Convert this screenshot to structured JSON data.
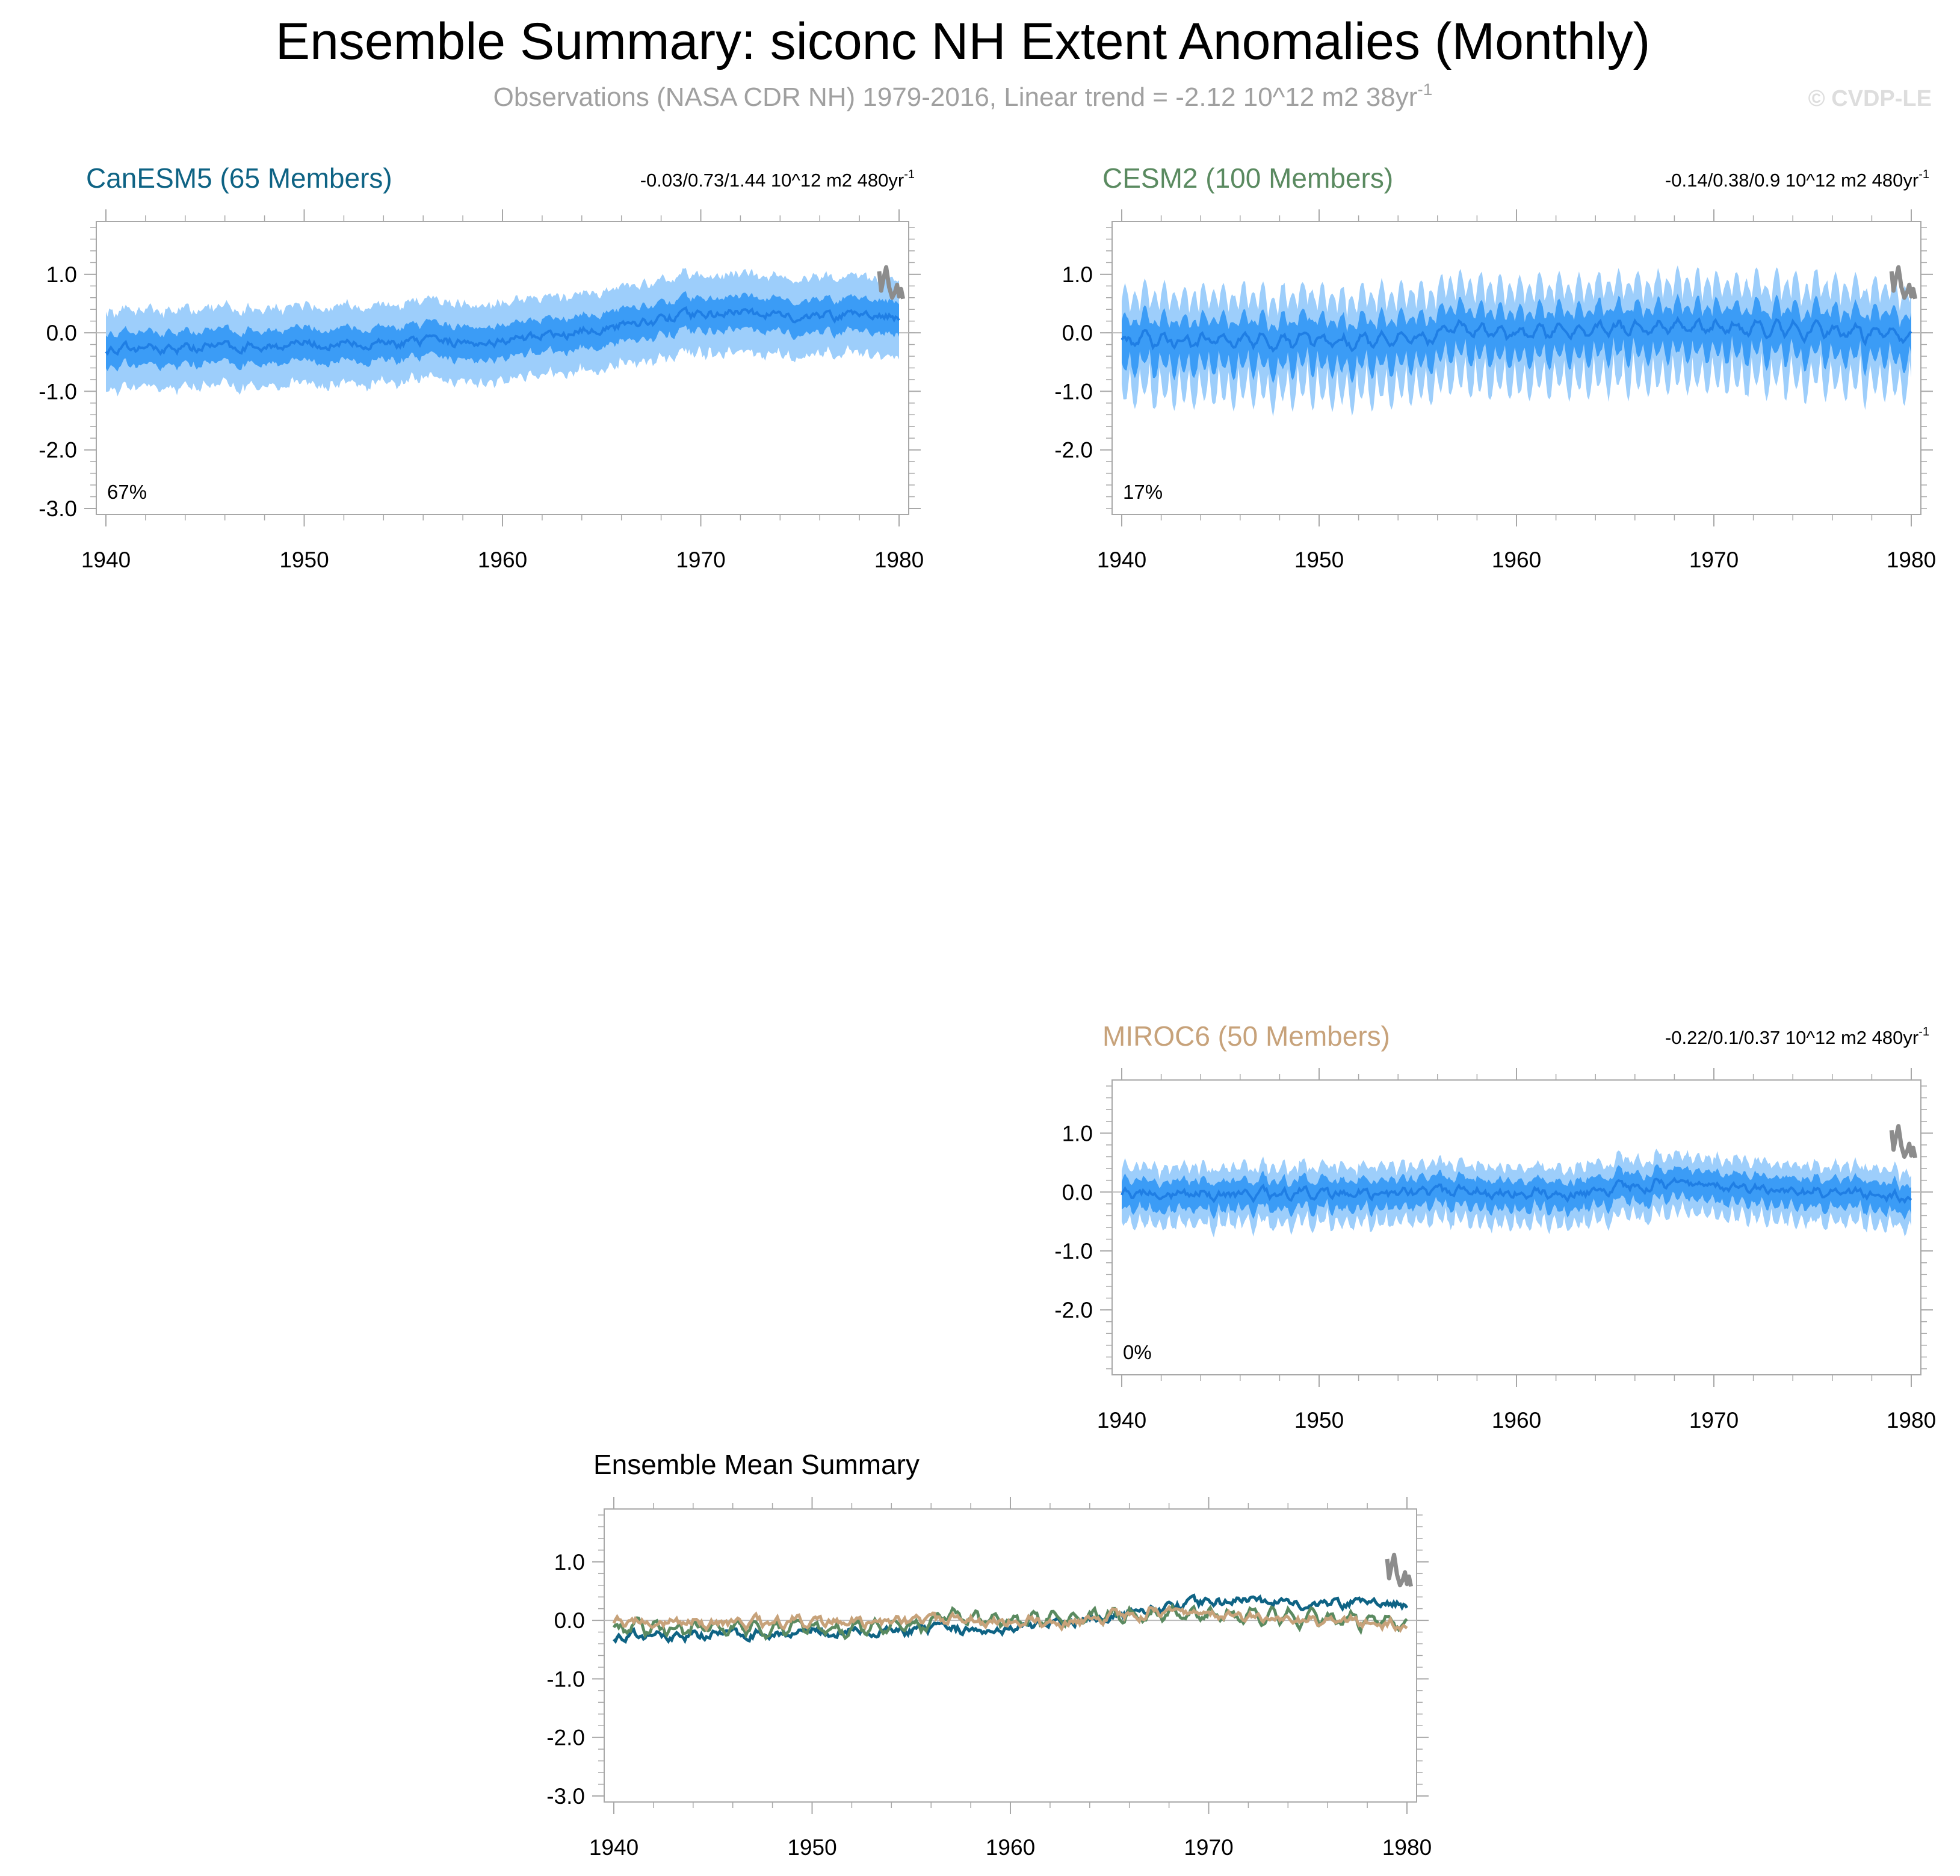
{
  "figure": {
    "title": "Ensemble Summary: siconc NH Extent Anomalies (Monthly)",
    "subtitle": "Observations (NASA CDR NH) 1979-2016, Linear trend = -2.12 10^12 m2 38yr",
    "subtitle_exponent": "-1",
    "copyright": "© CVDP-LE",
    "colors": {
      "title": "#000000",
      "subtitle": "#a0a0a0",
      "copyright": "#dddddd",
      "outer_spread": "#9dcefb",
      "inner_spread": "#3b9cf6",
      "ensemble_mean": "#1f7ee4",
      "observations": "#8c8c8c",
      "axis": "#a8a8a8"
    }
  },
  "chart_data": [
    {
      "id": "canesm5",
      "type": "area",
      "title": "CanESM5 (65 Members)",
      "title_color": "#0e6384",
      "stats": "-0.03/0.73/1.44 10^12 m2 480yr",
      "stats_exponent": "-1",
      "percent_label": "67%",
      "xlim": [
        1940,
        1980
      ],
      "ylim": [
        -3.0,
        1.8
      ],
      "xticks": [
        "1940",
        "1950",
        "1960",
        "1970",
        "1980"
      ],
      "yticks": [
        "1.0",
        "0.0",
        "-1.0",
        "-2.0",
        "-3.0"
      ],
      "ytick_values": [
        1.0,
        0.0,
        -1.0,
        -2.0,
        -3.0
      ],
      "mean_anchors": [
        [
          1940,
          -0.28
        ],
        [
          1945,
          -0.25
        ],
        [
          1950,
          -0.2
        ],
        [
          1955,
          -0.18
        ],
        [
          1960,
          -0.12
        ],
        [
          1963,
          -0.05
        ],
        [
          1965,
          0.08
        ],
        [
          1967,
          0.2
        ],
        [
          1970,
          0.32
        ],
        [
          1972,
          0.35
        ],
        [
          1975,
          0.28
        ],
        [
          1978,
          0.3
        ],
        [
          1980,
          0.28
        ]
      ],
      "inner_halfwidth": 0.26,
      "outer_halfwidth": 0.58,
      "seasonal_amplitude": 0.05
    },
    {
      "id": "cesm2",
      "type": "area",
      "title": "CESM2 (100 Members)",
      "title_color": "#5a8a60",
      "stats": "-0.14/0.38/0.9 10^12 m2 480yr",
      "stats_exponent": "-1",
      "percent_label": "17%",
      "xlim": [
        1940,
        1980
      ],
      "ylim": [
        -3.0,
        1.8
      ],
      "xticks": [
        "1940",
        "1950",
        "1960",
        "1970",
        "1980"
      ],
      "yticks": [
        "1.0",
        "0.0",
        "-1.0",
        "-2.0"
      ],
      "ytick_values": [
        1.0,
        0.0,
        -1.0,
        -2.0
      ],
      "mean_anchors": [
        [
          1940,
          -0.12
        ],
        [
          1945,
          -0.15
        ],
        [
          1950,
          -0.12
        ],
        [
          1955,
          -0.08
        ],
        [
          1957,
          0.05
        ],
        [
          1960,
          -0.02
        ],
        [
          1963,
          0.02
        ],
        [
          1966,
          0.08
        ],
        [
          1970,
          0.1
        ],
        [
          1975,
          0.05
        ],
        [
          1978,
          0.0
        ],
        [
          1980,
          -0.08
        ]
      ],
      "inner_halfwidth": 0.22,
      "outer_halfwidth": 0.45,
      "seasonal_amplitude": 0.38
    },
    {
      "id": "miroc6",
      "type": "area",
      "title": "MIROC6 (50 Members)",
      "title_color": "#c7a27a",
      "stats": "-0.22/0.1/0.37 10^12 m2 480yr",
      "stats_exponent": "-1",
      "percent_label": "0%",
      "xlim": [
        1940,
        1980
      ],
      "ylim": [
        -3.0,
        1.8
      ],
      "xticks": [
        "1940",
        "1950",
        "1960",
        "1970",
        "1980"
      ],
      "yticks": [
        "1.0",
        "0.0",
        "-1.0",
        "-2.0"
      ],
      "ytick_values": [
        1.0,
        0.0,
        -1.0,
        -2.0
      ],
      "mean_anchors": [
        [
          1940,
          -0.02
        ],
        [
          1945,
          -0.05
        ],
        [
          1950,
          -0.02
        ],
        [
          1955,
          0.0
        ],
        [
          1960,
          -0.02
        ],
        [
          1963,
          0.0
        ],
        [
          1967,
          0.15
        ],
        [
          1970,
          0.1
        ],
        [
          1975,
          0.02
        ],
        [
          1980,
          -0.08
        ]
      ],
      "inner_halfwidth": 0.18,
      "outer_halfwidth": 0.32,
      "seasonal_amplitude": 0.14
    },
    {
      "id": "ensemble_mean",
      "type": "line",
      "title": "Ensemble Mean Summary",
      "title_color": "#000000",
      "xlim": [
        1940,
        1980
      ],
      "ylim": [
        -3.0,
        1.8
      ],
      "xticks": [
        "1940",
        "1950",
        "1960",
        "1970",
        "1980"
      ],
      "yticks": [
        "1.0",
        "0.0",
        "-1.0",
        "-2.0",
        "-3.0"
      ],
      "ytick_values": [
        1.0,
        0.0,
        -1.0,
        -2.0,
        -3.0
      ],
      "series": [
        {
          "source": "canesm5",
          "color": "#0e6384"
        },
        {
          "source": "cesm2",
          "color": "#5a8a60"
        },
        {
          "source": "miroc6",
          "color": "#c7a27a"
        }
      ]
    }
  ],
  "observations": {
    "points": [
      [
        1979.0,
        1.05
      ],
      [
        1979.1,
        0.72
      ],
      [
        1979.2,
        0.9
      ],
      [
        1979.35,
        1.12
      ],
      [
        1979.5,
        0.78
      ],
      [
        1979.65,
        0.6
      ],
      [
        1979.8,
        0.7
      ],
      [
        1979.9,
        0.82
      ],
      [
        1980.0,
        0.62
      ],
      [
        1980.1,
        0.75
      ],
      [
        1980.2,
        0.58
      ]
    ],
    "color": "#8c8c8c"
  }
}
